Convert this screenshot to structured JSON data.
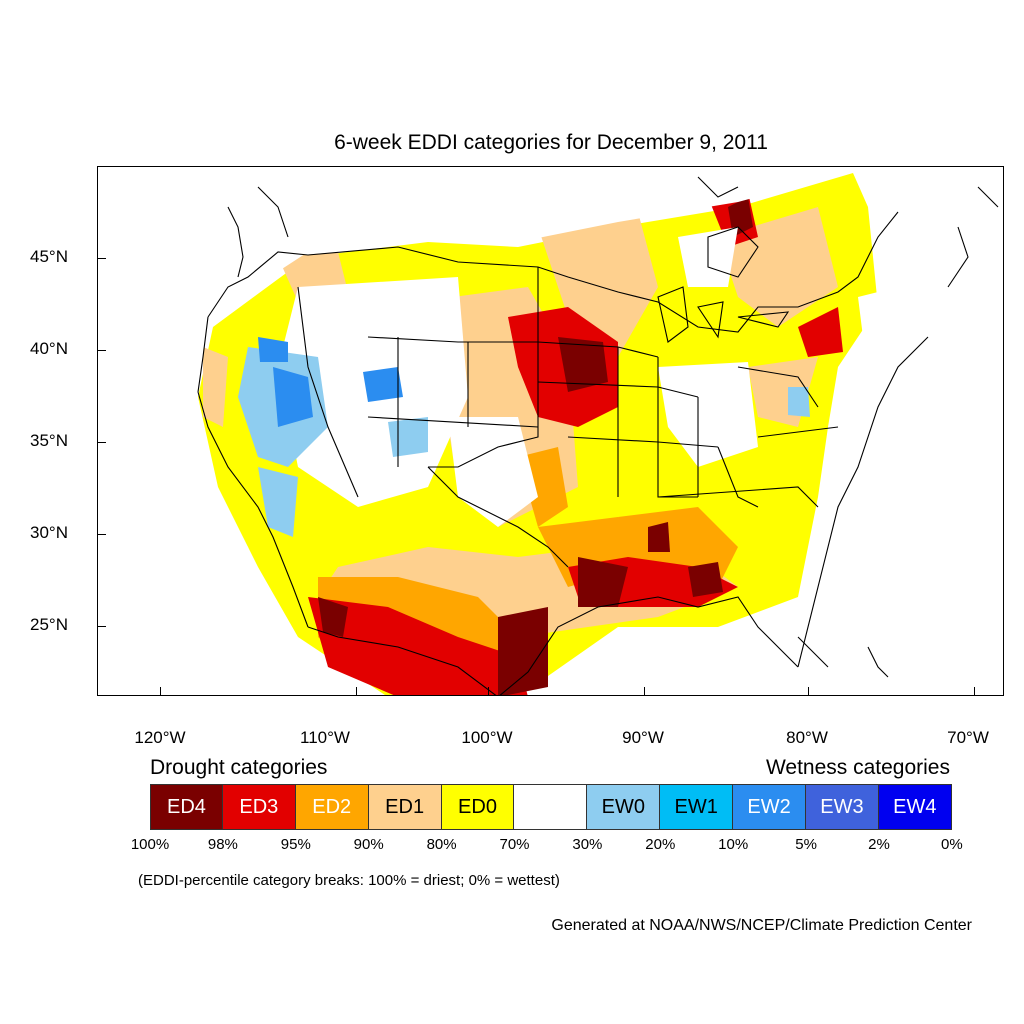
{
  "title": "6-week EDDI categories for December 9, 2011",
  "y_axis_labels": [
    "45°N",
    "40°N",
    "35°N",
    "30°N",
    "25°N"
  ],
  "x_axis_labels": [
    "120°W",
    "110°W",
    "100°W",
    "90°W",
    "80°W",
    "70°W"
  ],
  "legend": {
    "drought_heading": "Drought categories",
    "wetness_heading": "Wetness categories",
    "categories": [
      {
        "label": "ED4",
        "color": "#7a0000",
        "text_color": "#ffffff"
      },
      {
        "label": "ED3",
        "color": "#e20000",
        "text_color": "#ffffff"
      },
      {
        "label": "ED2",
        "color": "#ffa600",
        "text_color": "#ffffff"
      },
      {
        "label": "ED1",
        "color": "#fed08e",
        "text_color": "#000000"
      },
      {
        "label": "ED0",
        "color": "#ffff00",
        "text_color": "#000000"
      },
      {
        "label": "",
        "color": "#ffffff",
        "text_color": "#000000"
      },
      {
        "label": "EW0",
        "color": "#8ecdf0",
        "text_color": "#000000"
      },
      {
        "label": "EW1",
        "color": "#00bdf5",
        "text_color": "#000000"
      },
      {
        "label": "EW2",
        "color": "#2b8df0",
        "text_color": "#ffffff"
      },
      {
        "label": "EW3",
        "color": "#3f62dc",
        "text_color": "#ffffff"
      },
      {
        "label": "EW4",
        "color": "#0000f0",
        "text_color": "#ffffff"
      }
    ],
    "breaks": [
      "100%",
      "98%",
      "95%",
      "90%",
      "80%",
      "70%",
      "30%",
      "20%",
      "10%",
      "5%",
      "2%",
      "0%"
    ]
  },
  "note": "(EDDI-percentile category breaks: 100% = driest; 0% = wettest)",
  "credit": "Generated at NOAA/NWS/NCEP/Climate Prediction Center"
}
